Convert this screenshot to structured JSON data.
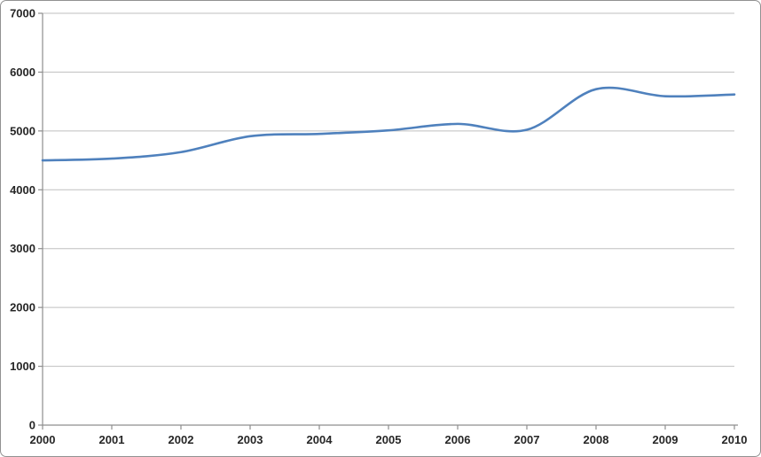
{
  "chart_data": {
    "type": "line",
    "title": "",
    "xlabel": "",
    "ylabel": "",
    "categories": [
      "2000",
      "2001",
      "2002",
      "2003",
      "2004",
      "2005",
      "2006",
      "2007",
      "2008",
      "2009",
      "2010"
    ],
    "series": [
      {
        "name": "series-1",
        "values": [
          4500,
          4530,
          4640,
          4910,
          4950,
          5010,
          5120,
          5020,
          5710,
          5590,
          5620
        ]
      }
    ],
    "ylim": [
      0,
      7000
    ],
    "ytick_step": 1000,
    "y_ticks": [
      0,
      1000,
      2000,
      3000,
      4000,
      5000,
      6000,
      7000
    ],
    "grid": "horizontal",
    "legend_position": "none",
    "smooth_line": true
  },
  "colors": {
    "line": "#4F81BD",
    "gridline": "#BFBFBF",
    "axis": "#8E8E8E",
    "tick_label": "#262626",
    "frame_border": "#919191",
    "background": "#FFFFFF"
  }
}
